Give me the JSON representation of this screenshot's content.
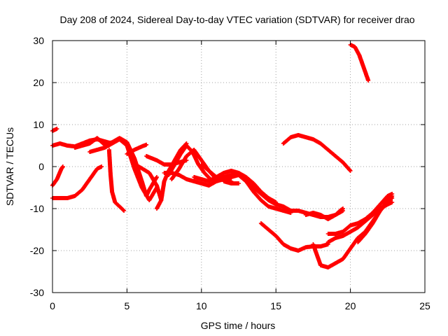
{
  "chart_data": {
    "type": "scatter",
    "title": "Day 208 of 2024, Sidereal Day-to-day VTEC variation (SDTVAR) for receiver drao",
    "xlabel": "GPS time / hours",
    "ylabel": "SDTVAR / TECUs",
    "xlim": [
      0,
      25
    ],
    "ylim": [
      -30,
      30
    ],
    "xticks": [
      0,
      5,
      10,
      15,
      20,
      25
    ],
    "yticks": [
      -30,
      -20,
      -10,
      0,
      10,
      20,
      30
    ],
    "grid": true,
    "marker": "plus",
    "color": "#ff0000",
    "series": [
      {
        "name": "s1",
        "points": [
          [
            0.0,
            8.5
          ],
          [
            0.3,
            9.0
          ]
        ]
      },
      {
        "name": "s2",
        "points": [
          [
            0.0,
            5.0
          ],
          [
            0.5,
            5.5
          ],
          [
            1.0,
            5.0
          ],
          [
            1.5,
            4.8
          ],
          [
            2.0,
            5.5
          ],
          [
            2.5,
            6.2
          ],
          [
            3.0,
            6.5
          ],
          [
            3.5,
            6.0
          ],
          [
            4.0,
            5.5
          ]
        ]
      },
      {
        "name": "s3",
        "points": [
          [
            0.0,
            -4.5
          ],
          [
            0.3,
            -3.0
          ],
          [
            0.6,
            -0.5
          ],
          [
            0.7,
            0.0
          ]
        ]
      },
      {
        "name": "s4",
        "points": [
          [
            0.0,
            -7.5
          ],
          [
            1.0,
            -7.5
          ],
          [
            1.5,
            -7.0
          ],
          [
            2.0,
            -5.5
          ],
          [
            2.5,
            -3.0
          ],
          [
            3.0,
            -0.5
          ],
          [
            3.3,
            0.0
          ]
        ]
      },
      {
        "name": "s5",
        "points": [
          [
            1.5,
            4.5
          ],
          [
            2.0,
            5.0
          ],
          [
            2.5,
            5.5
          ],
          [
            3.0,
            6.8
          ],
          [
            3.5,
            5.2
          ],
          [
            4.0,
            5.8
          ],
          [
            4.5,
            6.8
          ],
          [
            5.0,
            5.8
          ],
          [
            5.5,
            2.0
          ],
          [
            6.0,
            -3.5
          ],
          [
            6.3,
            -7.0
          ],
          [
            6.5,
            -5.5
          ],
          [
            7.0,
            -2.5
          ]
        ]
      },
      {
        "name": "s6",
        "points": [
          [
            2.5,
            3.5
          ],
          [
            3.0,
            4.0
          ],
          [
            3.5,
            4.5
          ],
          [
            4.0,
            5.5
          ],
          [
            4.5,
            6.5
          ],
          [
            5.0,
            5.0
          ],
          [
            5.5,
            -0.5
          ],
          [
            6.0,
            -5.0
          ],
          [
            6.5,
            -8.0
          ],
          [
            7.0,
            -5.0
          ]
        ]
      },
      {
        "name": "s7",
        "points": [
          [
            3.8,
            4.0
          ],
          [
            3.9,
            -2.0
          ],
          [
            4.0,
            -6.0
          ],
          [
            4.2,
            -8.5
          ],
          [
            4.5,
            -9.5
          ],
          [
            4.8,
            -10.5
          ]
        ]
      },
      {
        "name": "s8",
        "points": [
          [
            5.0,
            3.0
          ],
          [
            5.5,
            4.0
          ],
          [
            6.0,
            4.8
          ],
          [
            6.3,
            5.2
          ]
        ]
      },
      {
        "name": "s9",
        "points": [
          [
            5.8,
            0.0
          ],
          [
            6.5,
            -1.5
          ],
          [
            7.0,
            -4.5
          ],
          [
            7.3,
            -8.0
          ]
        ]
      },
      {
        "name": "s10",
        "points": [
          [
            6.3,
            2.5
          ],
          [
            7.0,
            1.5
          ],
          [
            7.5,
            0.5
          ],
          [
            8.0,
            0.5
          ],
          [
            8.5,
            1.0
          ],
          [
            9.0,
            1.5
          ]
        ]
      },
      {
        "name": "s11",
        "points": [
          [
            7.0,
            -10.0
          ],
          [
            7.3,
            -8.0
          ],
          [
            7.5,
            -3.5
          ],
          [
            7.8,
            -1.0
          ],
          [
            8.2,
            1.5
          ],
          [
            8.6,
            4.0
          ],
          [
            9.0,
            5.5
          ]
        ]
      },
      {
        "name": "s12",
        "points": [
          [
            7.5,
            -1.5
          ],
          [
            8.0,
            -1.5
          ],
          [
            8.5,
            -2.0
          ],
          [
            9.0,
            -3.0
          ],
          [
            9.5,
            -3.5
          ],
          [
            10.0,
            -4.0
          ],
          [
            10.5,
            -4.5
          ],
          [
            11.0,
            -3.5
          ],
          [
            11.5,
            -3.0
          ],
          [
            12.0,
            -3.5
          ]
        ]
      },
      {
        "name": "s13",
        "points": [
          [
            7.8,
            -2.0
          ],
          [
            8.2,
            0.5
          ],
          [
            8.6,
            3.0
          ],
          [
            9.0,
            5.0
          ],
          [
            9.4,
            3.5
          ],
          [
            9.8,
            0.5
          ],
          [
            10.2,
            -1.5
          ],
          [
            10.6,
            -3.0
          ],
          [
            11.0,
            -3.5
          ]
        ]
      },
      {
        "name": "s14",
        "points": [
          [
            8.0,
            -3.0
          ],
          [
            8.5,
            -0.5
          ],
          [
            9.0,
            2.5
          ],
          [
            9.5,
            4.0
          ],
          [
            10.0,
            1.5
          ],
          [
            10.5,
            -1.0
          ],
          [
            11.0,
            -3.0
          ],
          [
            11.5,
            -2.5
          ],
          [
            12.0,
            -2.0
          ],
          [
            12.5,
            -1.5
          ]
        ]
      },
      {
        "name": "s15",
        "points": [
          [
            9.5,
            -2.5
          ],
          [
            10.0,
            -3.0
          ],
          [
            10.5,
            -3.5
          ],
          [
            11.0,
            -2.5
          ],
          [
            11.5,
            -1.5
          ],
          [
            12.0,
            -1.0
          ],
          [
            12.5,
            -1.5
          ],
          [
            13.0,
            -2.5
          ],
          [
            13.5,
            -4.0
          ],
          [
            14.0,
            -6.0
          ],
          [
            14.5,
            -7.5
          ],
          [
            15.0,
            -8.5
          ]
        ]
      },
      {
        "name": "s16",
        "points": [
          [
            10.0,
            0.5
          ],
          [
            10.5,
            -1.0
          ],
          [
            11.0,
            -2.5
          ],
          [
            11.5,
            -3.0
          ],
          [
            12.0,
            -2.5
          ],
          [
            12.5,
            -2.0
          ],
          [
            13.0,
            -3.5
          ],
          [
            13.5,
            -6.0
          ],
          [
            14.0,
            -8.0
          ],
          [
            14.5,
            -9.5
          ],
          [
            15.0,
            -10.0
          ],
          [
            15.5,
            -10.5
          ],
          [
            16.0,
            -11.0
          ]
        ]
      },
      {
        "name": "s17",
        "points": [
          [
            11.5,
            -3.5
          ],
          [
            12.0,
            -4.0
          ],
          [
            12.5,
            -4.0
          ]
        ]
      },
      {
        "name": "s18",
        "points": [
          [
            12.5,
            -2.0
          ],
          [
            13.0,
            -3.5
          ],
          [
            13.5,
            -5.0
          ],
          [
            14.0,
            -6.5
          ],
          [
            14.5,
            -8.0
          ],
          [
            15.0,
            -9.0
          ],
          [
            15.5,
            -9.5
          ],
          [
            16.0,
            -10.5
          ],
          [
            16.5,
            -10.5
          ],
          [
            17.0,
            -11.0
          ],
          [
            17.5,
            -11.5
          ],
          [
            18.0,
            -12.0
          ],
          [
            18.5,
            -12.0
          ],
          [
            19.0,
            -11.5
          ],
          [
            19.3,
            -10.5
          ],
          [
            19.5,
            -10.0
          ]
        ]
      },
      {
        "name": "s19",
        "points": [
          [
            14.0,
            -13.5
          ],
          [
            14.5,
            -15.0
          ],
          [
            15.0,
            -16.5
          ],
          [
            15.5,
            -18.5
          ],
          [
            16.0,
            -19.5
          ],
          [
            16.5,
            -20.0
          ],
          [
            17.0,
            -19.2
          ],
          [
            17.5,
            -19.0
          ],
          [
            18.0,
            -19.0
          ],
          [
            18.5,
            -18.5
          ]
        ]
      },
      {
        "name": "s20",
        "points": [
          [
            15.5,
            5.5
          ],
          [
            16.0,
            7.0
          ],
          [
            16.5,
            7.5
          ],
          [
            17.0,
            7.0
          ],
          [
            17.5,
            6.5
          ],
          [
            18.0,
            5.5
          ],
          [
            18.5,
            4.0
          ],
          [
            19.0,
            2.5
          ],
          [
            19.5,
            1.0
          ],
          [
            20.0,
            -1.0
          ]
        ]
      },
      {
        "name": "s21",
        "points": [
          [
            17.0,
            -11.5
          ],
          [
            17.5,
            -11.0
          ],
          [
            18.0,
            -11.5
          ],
          [
            18.5,
            -12.5
          ],
          [
            19.0,
            -11.5
          ],
          [
            19.5,
            -10.5
          ]
        ]
      },
      {
        "name": "s22",
        "points": [
          [
            17.5,
            -18.5
          ],
          [
            18.0,
            -23.5
          ],
          [
            18.5,
            -24.0
          ],
          [
            19.0,
            -23.0
          ],
          [
            19.5,
            -22.0
          ],
          [
            20.0,
            -19.5
          ],
          [
            20.5,
            -17.0
          ],
          [
            21.0,
            -15.5
          ],
          [
            21.5,
            -13.0
          ],
          [
            22.0,
            -10.5
          ],
          [
            22.5,
            -8.5
          ],
          [
            22.8,
            -7.0
          ]
        ]
      },
      {
        "name": "s23",
        "points": [
          [
            18.5,
            -16.0
          ],
          [
            19.0,
            -16.0
          ],
          [
            19.5,
            -15.5
          ],
          [
            20.0,
            -14.0
          ],
          [
            20.5,
            -13.5
          ],
          [
            21.0,
            -12.5
          ],
          [
            21.5,
            -11.0
          ],
          [
            22.0,
            -9.0
          ],
          [
            22.5,
            -7.0
          ],
          [
            22.8,
            -6.5
          ]
        ]
      },
      {
        "name": "s24",
        "points": [
          [
            18.5,
            -18.0
          ],
          [
            19.0,
            -17.0
          ],
          [
            19.5,
            -16.5
          ],
          [
            20.0,
            -15.5
          ],
          [
            20.5,
            -14.5
          ],
          [
            21.0,
            -13.0
          ],
          [
            21.5,
            -11.5
          ],
          [
            22.0,
            -10.0
          ],
          [
            22.5,
            -9.0
          ],
          [
            22.8,
            -8.5
          ]
        ]
      },
      {
        "name": "s25",
        "points": [
          [
            20.5,
            -18.0
          ],
          [
            21.0,
            -16.0
          ],
          [
            21.5,
            -13.5
          ],
          [
            22.0,
            -10.5
          ],
          [
            22.5,
            -8.0
          ],
          [
            22.8,
            -7.5
          ]
        ]
      },
      {
        "name": "s26",
        "points": [
          [
            20.0,
            29.0
          ],
          [
            20.3,
            28.5
          ],
          [
            20.6,
            26.5
          ],
          [
            20.8,
            24.5
          ],
          [
            21.0,
            22.5
          ],
          [
            21.2,
            20.5
          ]
        ]
      }
    ]
  }
}
